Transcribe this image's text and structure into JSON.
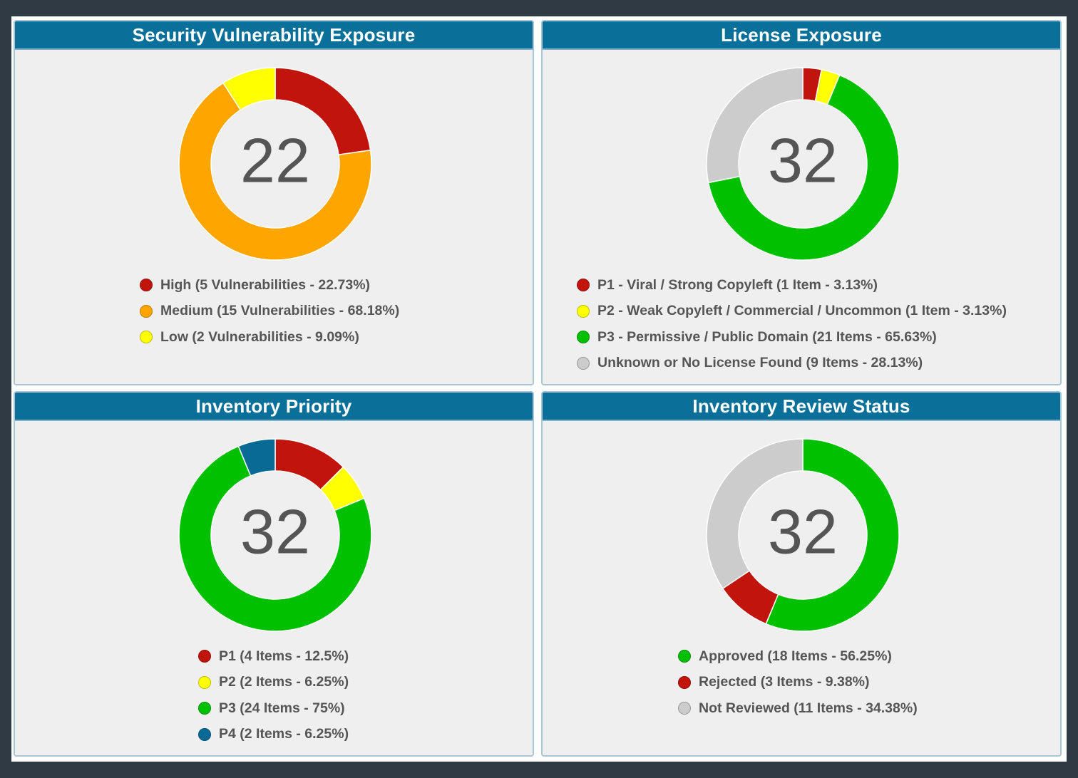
{
  "chart_data": [
    {
      "type": "pie",
      "title": "Security Vulnerability Exposure",
      "center_value": "22",
      "categories": [
        "High",
        "Medium",
        "Low"
      ],
      "values": [
        5,
        15,
        2
      ],
      "colors": [
        "#c0140c",
        "#ffa500",
        "#ffff00"
      ],
      "legend": [
        "High (5 Vulnerabilities - 22.73%)",
        "Medium (15 Vulnerabilities - 68.18%)",
        "Low (2 Vulnerabilities - 9.09%)"
      ]
    },
    {
      "type": "pie",
      "title": "License Exposure",
      "center_value": "32",
      "categories": [
        "P1 - Viral / Strong Copyleft",
        "P2 - Weak Copyleft / Commercial / Uncommon",
        "P3 - Permissive / Public Domain",
        "Unknown or No License Found"
      ],
      "values": [
        1,
        1,
        21,
        9
      ],
      "colors": [
        "#c0140c",
        "#ffff00",
        "#00c000",
        "#cccccc"
      ],
      "legend": [
        "P1 - Viral / Strong Copyleft (1 Item - 3.13%)",
        "P2 - Weak Copyleft / Commercial / Uncommon (1 Item - 3.13%)",
        "P3 - Permissive / Public Domain (21 Items - 65.63%)",
        "Unknown or No License Found (9 Items - 28.13%)"
      ]
    },
    {
      "type": "pie",
      "title": "Inventory Priority",
      "center_value": "32",
      "categories": [
        "P1",
        "P2",
        "P3",
        "P4"
      ],
      "values": [
        4,
        2,
        24,
        2
      ],
      "colors": [
        "#c0140c",
        "#ffff00",
        "#00c000",
        "#0a6a96"
      ],
      "legend": [
        "P1 (4 Items - 12.5%)",
        "P2 (2 Items - 6.25%)",
        "P3 (24 Items - 75%)",
        "P4 (2 Items - 6.25%)"
      ]
    },
    {
      "type": "pie",
      "title": "Inventory Review Status",
      "center_value": "32",
      "categories": [
        "Approved",
        "Rejected",
        "Not Reviewed"
      ],
      "values": [
        18,
        3,
        11
      ],
      "colors": [
        "#00c000",
        "#c0140c",
        "#cccccc"
      ],
      "legend": [
        "Approved (18 Items - 56.25%)",
        "Rejected (3 Items - 9.38%)",
        "Not Reviewed (11 Items - 34.38%)"
      ]
    }
  ]
}
